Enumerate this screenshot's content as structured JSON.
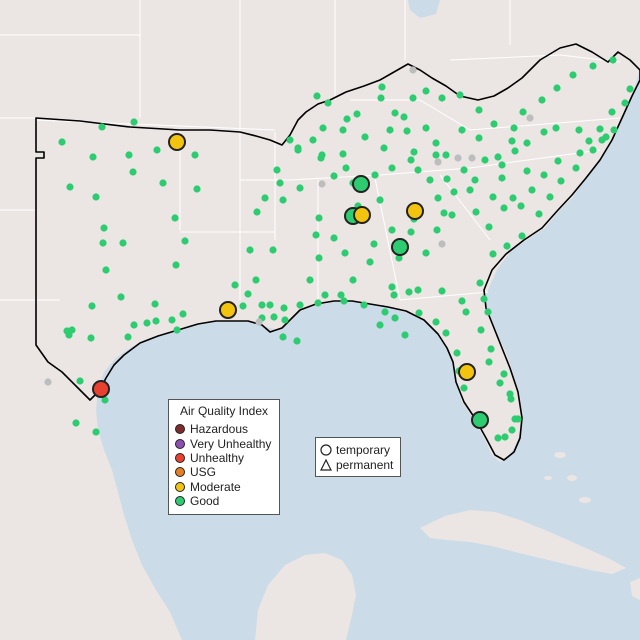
{
  "map": {
    "land_color": "#ebe6e3",
    "water_color": "#cbdbe8",
    "state_line_color": "#ffffff",
    "region_outline_color": "#000000"
  },
  "aqi_legend": {
    "title": "Air Quality Index",
    "items": [
      {
        "label": "Hazardous",
        "color": "#7e2b2b"
      },
      {
        "label": "Very Unhealthy",
        "color": "#8e4fb3"
      },
      {
        "label": "Unhealthy",
        "color": "#e8412f"
      },
      {
        "label": "USG",
        "color": "#e67e22"
      },
      {
        "label": "Moderate",
        "color": "#f2c40f"
      },
      {
        "label": "Good",
        "color": "#2ecc71"
      }
    ]
  },
  "shape_legend": {
    "items": [
      {
        "label": "temporary",
        "shape": "circle-icon"
      },
      {
        "label": "permanent",
        "shape": "triangle-icon"
      }
    ]
  },
  "monitors": {
    "large": [
      {
        "aqi": "Moderate"
      },
      {
        "aqi": "Good"
      },
      {
        "aqi": "Good"
      },
      {
        "aqi": "Moderate"
      },
      {
        "aqi": "Moderate"
      },
      {
        "aqi": "Good"
      },
      {
        "aqi": "Moderate"
      },
      {
        "aqi": "Moderate"
      },
      {
        "aqi": "Unhealthy"
      },
      {
        "aqi": "Good"
      }
    ]
  }
}
